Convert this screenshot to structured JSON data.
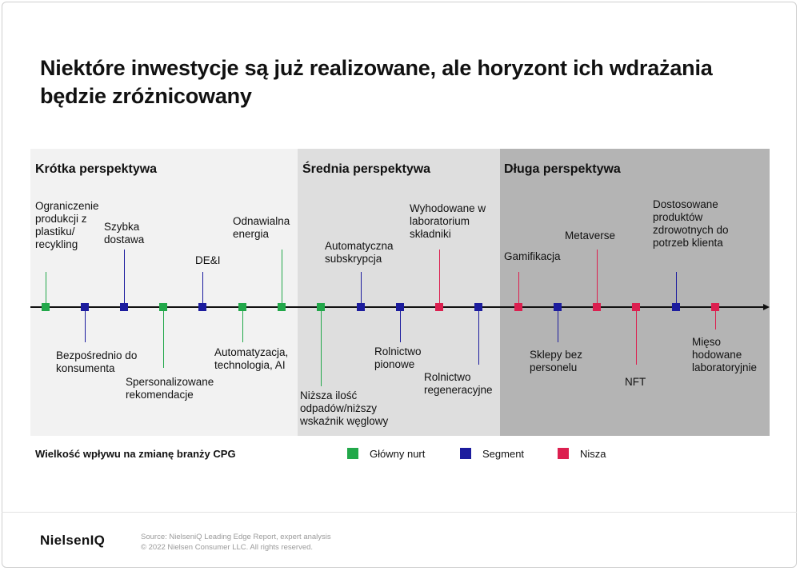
{
  "title": "Niektóre inwestycje są już realizowane, ale horyzont ich wdrażania będzie zróżnicowany",
  "zones": {
    "short": "Krótka perspektywa",
    "medium": "Średnia perspektywa",
    "long": "Długa perspektywa"
  },
  "colors": {
    "glowny_nurt": "#22a84a",
    "segment": "#1c1c9e",
    "nisza": "#dc1f4f"
  },
  "items": [
    {
      "key": "plastik",
      "label": "Ograniczenie produkcji z plastiku/ recykling",
      "category": "glowny_nurt"
    },
    {
      "key": "konsument",
      "label": "Bezpośrednio do konsumenta",
      "category": "segment"
    },
    {
      "key": "dostawa",
      "label": "Szybka dostawa",
      "category": "segment"
    },
    {
      "key": "rekomendacje",
      "label": "Spersonalizowane rekomendacje",
      "category": "glowny_nurt"
    },
    {
      "key": "dei",
      "label": "DE&I",
      "category": "segment"
    },
    {
      "key": "automatyzacja",
      "label": "Automatyzacja, technologia, AI",
      "category": "glowny_nurt"
    },
    {
      "key": "energia",
      "label": "Odnawialna energia",
      "category": "glowny_nurt"
    },
    {
      "key": "odpady",
      "label": "Niższa ilość odpadów/niższy wskaźnik węglowy",
      "category": "glowny_nurt"
    },
    {
      "key": "subskrypcja",
      "label": "Automatyczna subskrypcja",
      "category": "segment"
    },
    {
      "key": "rolnictwo_pionowe",
      "label": "Rolnictwo pionowe",
      "category": "segment"
    },
    {
      "key": "skladniki",
      "label": "Wyhodowane w laboratorium składniki",
      "category": "nisza"
    },
    {
      "key": "rolnictwo_regen",
      "label": "Rolnictwo regeneracyjne",
      "category": "segment"
    },
    {
      "key": "gamifikacja",
      "label": "Gamifikacja",
      "category": "nisza"
    },
    {
      "key": "sklepy",
      "label": "Sklepy bez personelu",
      "category": "segment"
    },
    {
      "key": "metaverse",
      "label": "Metaverse",
      "category": "nisza"
    },
    {
      "key": "nft",
      "label": "NFT",
      "category": "nisza"
    },
    {
      "key": "produkty",
      "label": "Dostosowane produktów zdrowotnych do potrzeb klienta",
      "category": "segment"
    },
    {
      "key": "mieso",
      "label": "Mięso hodowane laboratoryjnie",
      "category": "nisza"
    }
  ],
  "legend": {
    "title": "Wielkość wpływu na zmianę branży CPG",
    "glowny_nurt": "Główny nurt",
    "segment": "Segment",
    "nisza": "Nisza"
  },
  "footer": {
    "brand": "NielsenIQ",
    "source_line1": "Source: NielseniQ Leading Edge Report, expert analysis",
    "source_line2": "© 2022 Nielsen Consumer LLC. All rights reserved."
  }
}
